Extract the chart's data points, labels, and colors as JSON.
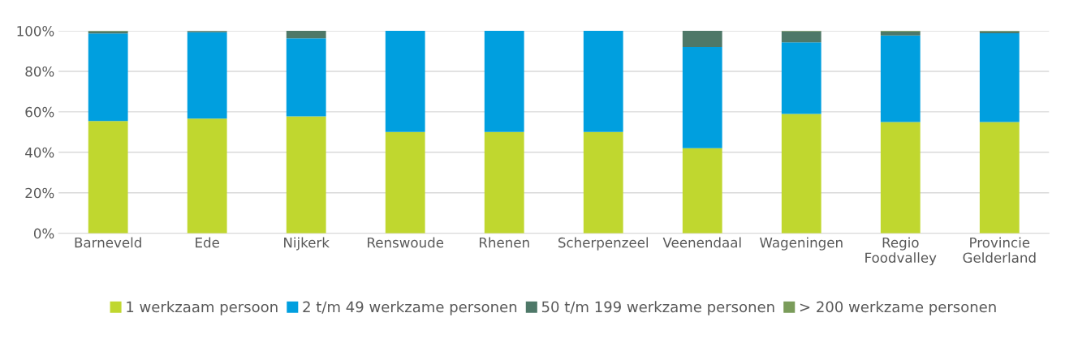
{
  "chart_data": {
    "type": "bar",
    "stacked": true,
    "categories": [
      "Barneveld",
      "Ede",
      "Nijkerk",
      "Renswoude",
      "Rhenen",
      "Scherpenzeel",
      "Veenendaal",
      "Wageningen",
      "Regio\nFoodvalley",
      "Provincie\nGelderland"
    ],
    "series": [
      {
        "name": "1 werkzaam persoon",
        "color": "#c0d72f",
        "values": [
          55.5,
          56.7,
          57.8,
          50,
          50,
          50,
          42,
          59,
          55,
          55
        ]
      },
      {
        "name": "2 t/m 49 werkzame personen",
        "color": "#009fdf",
        "values": [
          43.2,
          42.6,
          38.5,
          50,
          50,
          50,
          50,
          35.3,
          42.7,
          43.8
        ]
      },
      {
        "name": "50 t/m 199 werkzame personen",
        "color": "#4e7868",
        "values": [
          1.1,
          0.6,
          3.7,
          0,
          0,
          0,
          8,
          5.5,
          2,
          1
        ]
      },
      {
        "name": "> 200 werkzame personen",
        "color": "#7a9c5a",
        "values": [
          0.2,
          null,
          0,
          0,
          0,
          0,
          0,
          0.2,
          0.3,
          0.2
        ]
      }
    ],
    "ylim": [
      0,
      100
    ],
    "yticks": [
      {
        "value": 0,
        "label": "0%"
      },
      {
        "value": 20,
        "label": "20%"
      },
      {
        "value": 40,
        "label": "40%"
      },
      {
        "value": 60,
        "label": "60%"
      },
      {
        "value": 80,
        "label": "80%"
      },
      {
        "value": 100,
        "label": "100%"
      }
    ],
    "grid": "y",
    "legend": "bottom"
  }
}
